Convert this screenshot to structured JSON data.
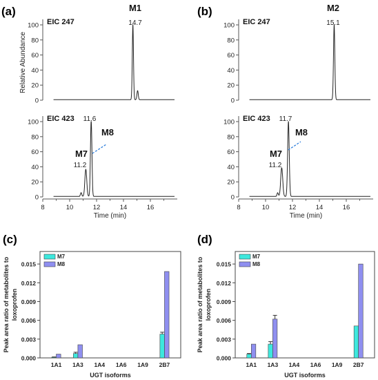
{
  "panels": {
    "a": "(a)",
    "b": "(b)",
    "c": "(c)",
    "d": "(d)"
  },
  "colors": {
    "m7": "#3de8dd",
    "m8": "#8f8ff0",
    "trace": "#222222",
    "dash": "#2f7fdc"
  },
  "chart_data": [
    {
      "panel": "a",
      "type": "line",
      "traces": [
        {
          "label": "EIC 247",
          "peaks": [
            {
              "name": "M1",
              "rt": 14.7,
              "height": 100,
              "width": 0.045
            },
            {
              "name": "",
              "rt": 15.05,
              "height": 12,
              "width": 0.05
            }
          ],
          "peak_labels": [
            {
              "text": "M1",
              "rt": "14.7"
            }
          ]
        },
        {
          "label": "EIC 423",
          "peaks": [
            {
              "name": "",
              "rt": 10.85,
              "height": 5,
              "width": 0.05
            },
            {
              "name": "M7",
              "rt": 11.2,
              "height": 36,
              "width": 0.07
            },
            {
              "name": "M8",
              "rt": 11.6,
              "height": 100,
              "width": 0.055
            }
          ],
          "peak_labels": [
            {
              "text": "M8",
              "rt": "11.6"
            },
            {
              "text": "M7",
              "rt": "11.2"
            }
          ]
        }
      ],
      "ylabel": "Relative Abundance",
      "xlabel": "Time (min)",
      "ylim": [
        0,
        100
      ],
      "yticks": [
        0,
        20,
        40,
        60,
        80,
        100
      ],
      "xlim": [
        8,
        18
      ],
      "xticks": [
        8,
        10,
        12,
        14,
        16
      ]
    },
    {
      "panel": "b",
      "type": "line",
      "traces": [
        {
          "label": "EIC 247",
          "peaks": [
            {
              "name": "M2",
              "rt": 15.1,
              "height": 100,
              "width": 0.05
            }
          ],
          "peak_labels": [
            {
              "text": "M2",
              "rt": "15.1"
            }
          ]
        },
        {
          "label": "EIC 423",
          "peaks": [
            {
              "name": "",
              "rt": 10.9,
              "height": 5,
              "width": 0.05
            },
            {
              "name": "M7",
              "rt": 11.2,
              "height": 38,
              "width": 0.075
            },
            {
              "name": "M8",
              "rt": 11.7,
              "height": 100,
              "width": 0.06
            }
          ],
          "peak_labels": [
            {
              "text": "M8",
              "rt": "11.7"
            },
            {
              "text": "M7",
              "rt": "11.2"
            }
          ]
        }
      ],
      "ylabel": "",
      "xlabel": "Time (min)",
      "ylim": [
        0,
        100
      ],
      "yticks": [
        0,
        20,
        40,
        60,
        80,
        100
      ],
      "xlim": [
        8,
        18
      ],
      "xticks": [
        8,
        10,
        12,
        14,
        16
      ]
    },
    {
      "panel": "c",
      "type": "bar",
      "categories": [
        "1A1",
        "1A3",
        "1A4",
        "1A6",
        "1A9",
        "2B7"
      ],
      "series": [
        {
          "name": "M7",
          "values": [
            0.0001,
            0.0007,
            0,
            0,
            0,
            0.0038
          ],
          "errors": [
            5e-05,
            0.0002,
            0,
            0,
            0,
            0.0003
          ]
        },
        {
          "name": "M8",
          "values": [
            0.0006,
            0.0021,
            0,
            0,
            0,
            0.0138
          ],
          "errors": [
            0,
            0,
            0,
            0,
            0,
            0
          ]
        }
      ],
      "ylabel": "Peak area ratio of metabolites to loxoprofen",
      "xlabel": "UGT isoforms",
      "ylim": [
        0,
        0.017
      ],
      "yticks": [
        "0.000",
        "0.003",
        "0.006",
        "0.009",
        "0.012",
        "0.015"
      ],
      "legend": "top-left"
    },
    {
      "panel": "d",
      "type": "bar",
      "categories": [
        "1A1",
        "1A3",
        "1A4",
        "1A6",
        "1A9",
        "2B7"
      ],
      "series": [
        {
          "name": "M7",
          "values": [
            0.0006,
            0.0022,
            0,
            0,
            0,
            0.0051
          ],
          "errors": [
            0.0001,
            0.0004,
            0,
            0,
            0,
            0
          ]
        },
        {
          "name": "M8",
          "values": [
            0.0022,
            0.0062,
            0,
            0,
            0,
            0.015
          ],
          "errors": [
            0,
            0.0006,
            0,
            0,
            0,
            0
          ]
        }
      ],
      "ylabel": "Peak area ratio of metabolites to loxoprofen",
      "xlabel": "UGT isoforms",
      "ylim": [
        0,
        0.017
      ],
      "yticks": [
        "0.000",
        "0.003",
        "0.006",
        "0.009",
        "0.012",
        "0.015"
      ],
      "legend": "top-left"
    }
  ]
}
